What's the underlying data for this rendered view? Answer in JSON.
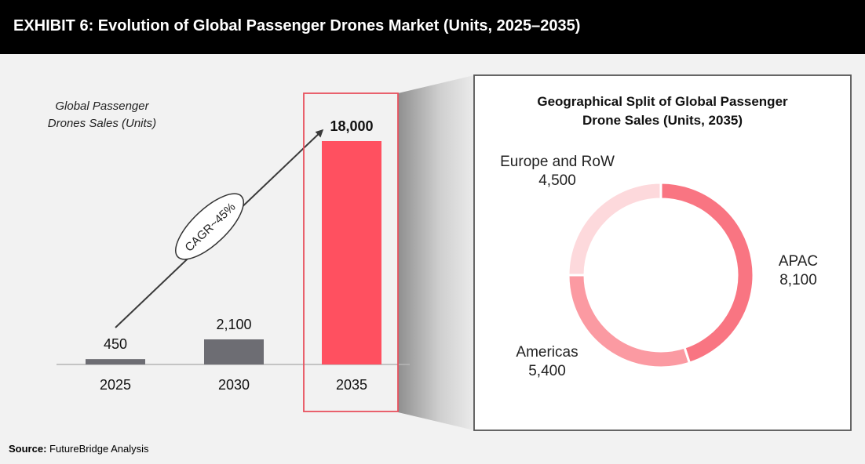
{
  "header": {
    "title": "EXHIBIT 6: Evolution of Global Passenger Drones Market (Units, 2025–2035)"
  },
  "footer": {
    "source_label": "Source:",
    "source_text": "FutureBridge Analysis"
  },
  "colors": {
    "header_bg": "#000000",
    "bar_grey": "#6d6d73",
    "bar_highlight": "#ff5060",
    "apac": "#f97582",
    "americas": "#fb9aa2",
    "europe_row": "#fdd9dc",
    "highlight_border": "#e8515e"
  },
  "chart_data": [
    {
      "type": "bar",
      "ylabel_lines": [
        "Global Passenger",
        "Drones Sales (Units)"
      ],
      "categories": [
        "2025",
        "2030",
        "2035"
      ],
      "values": [
        450,
        2100,
        18000
      ],
      "value_labels": [
        "450",
        "2,100",
        "18,000"
      ],
      "highlight_category": "2035",
      "annotation": "CAGR~45%",
      "ylim": [
        0,
        18000
      ],
      "grid": false
    },
    {
      "type": "pie",
      "donut": true,
      "title_lines": [
        "Geographical Split of Global Passenger",
        "Drone Sales (Units, 2035)"
      ],
      "slices": [
        {
          "name": "APAC",
          "value": 8100,
          "value_label": "8,100",
          "color": "#f97582"
        },
        {
          "name": "Americas",
          "value": 5400,
          "value_label": "5,400",
          "color": "#fb9aa2"
        },
        {
          "name": "Europe and RoW",
          "value": 4500,
          "value_label": "4,500",
          "color": "#fdd9dc"
        }
      ]
    }
  ]
}
